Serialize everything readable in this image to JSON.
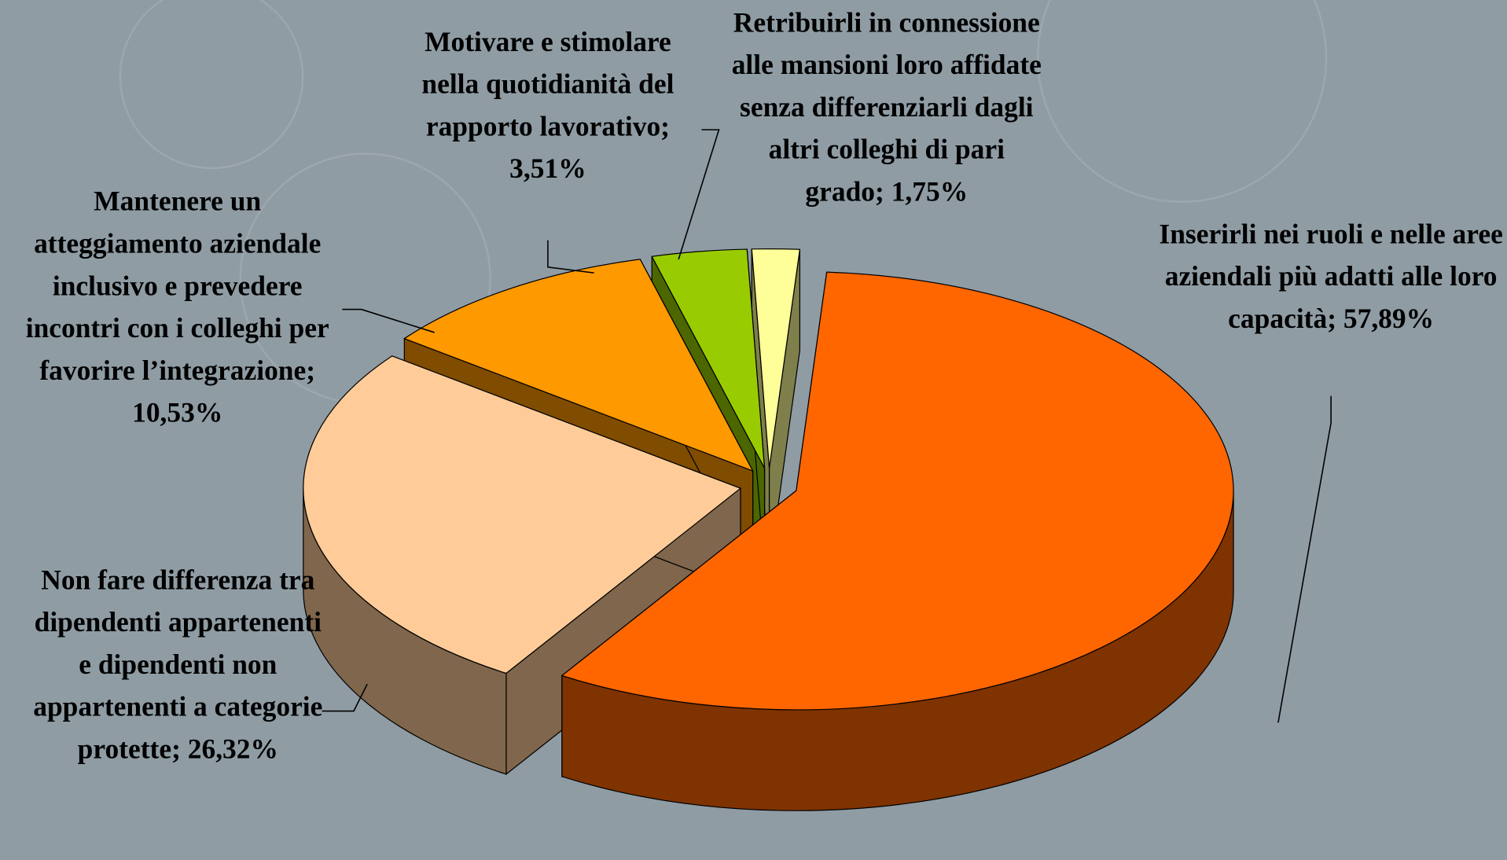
{
  "chart_data": {
    "type": "pie",
    "pie_3d": true,
    "exploded": true,
    "categories": [
      "Inserirli nei ruoli e nelle aree aziendali più adatti alle loro capacità;",
      "Non fare differenza tra dipendenti appartenenti e dipendenti non appartenenti a categorie protette;",
      "Mantenere un atteggiamento aziendale inclusivo e prevedere incontri con i colleghi per favorire l’integrazione;",
      "Motivare e stimolare nella quotidianità del rapporto lavorativo;",
      "Retribuirli in connessione alle mansioni loro affidate senza differenziarli dagli altri colleghi di pari grado;"
    ],
    "values": [
      57.89,
      26.32,
      10.53,
      3.51,
      1.75
    ],
    "value_labels": [
      "57,89%",
      "26,32%",
      "10,53%",
      "3,51%",
      "1,75%"
    ],
    "colors": [
      "#ff6600",
      "#ffcc99",
      "#ff9900",
      "#99cc00",
      "#ffff99"
    ]
  }
}
